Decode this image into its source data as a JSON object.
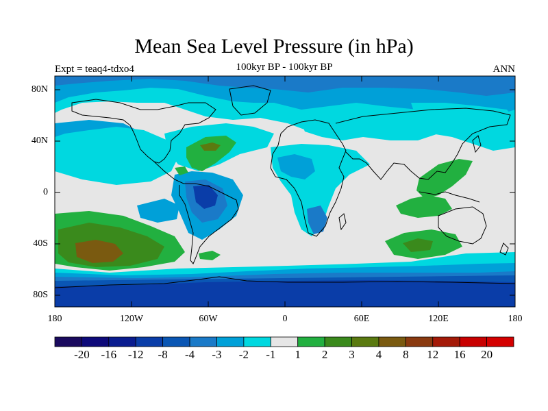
{
  "title": "Mean Sea Level Pressure (in hPa)",
  "subtitle_left": "Expt = teaq4-tdxo4",
  "subtitle_center": "100kyr BP - 100kyr BP",
  "subtitle_right": "ANN",
  "lat_ticks": [
    "80N",
    "40N",
    "0",
    "40S",
    "80S"
  ],
  "lon_ticks": [
    "180",
    "120W",
    "60W",
    "0",
    "60E",
    "120E",
    "180"
  ],
  "colorbar": {
    "labels": [
      "-20",
      "-16",
      "-12",
      "-8",
      "-4",
      "-3",
      "-2",
      "-1",
      "1",
      "2",
      "3",
      "4",
      "8",
      "12",
      "16",
      "20"
    ],
    "colors": [
      "#1a0a5e",
      "#0e0a7a",
      "#0a1c8f",
      "#0a3da8",
      "#0a56b4",
      "#1a7ac8",
      "#00a0d8",
      "#00d8e0",
      "#e6e6e6",
      "#22b040",
      "#3a8a1c",
      "#5a7a10",
      "#7a5a10",
      "#8a3a10",
      "#a41a08",
      "#c80000",
      "#d40000"
    ]
  },
  "map": {
    "projection": "cylindrical equidistant",
    "region_colors": {
      "neutral": "#e6e6e6",
      "cyan": "#00d8e0",
      "light_blue": "#00a0d8",
      "mid_blue": "#1a7ac8",
      "blue": "#0a56b4",
      "dark_blue": "#0a3da8",
      "green": "#22b040",
      "dark_green": "#3a8a1c",
      "olive": "#5a7a10",
      "brown": "#7a5a10"
    }
  }
}
